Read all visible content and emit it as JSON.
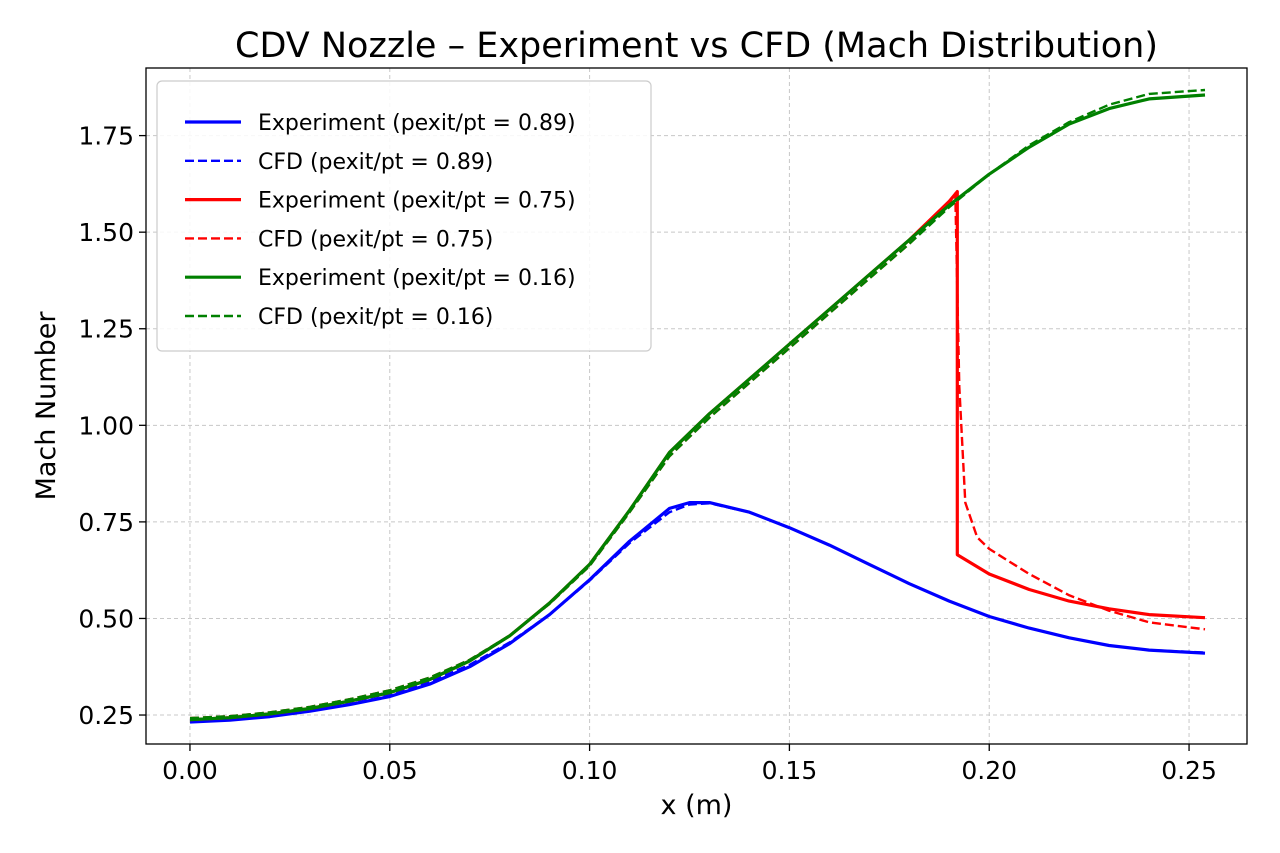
{
  "chart_data": {
    "type": "line",
    "title": "CDV Nozzle – Experiment vs CFD (Mach Distribution)",
    "xlabel": "x (m)",
    "ylabel": "Mach Number",
    "xlim": [
      -0.011,
      0.2645
    ],
    "ylim": [
      0.175,
      1.925
    ],
    "xticks": [
      0.0,
      0.05,
      0.1,
      0.15,
      0.2,
      0.25
    ],
    "xtick_labels": [
      "0.00",
      "0.05",
      "0.10",
      "0.15",
      "0.20",
      "0.25"
    ],
    "yticks": [
      0.25,
      0.5,
      0.75,
      1.0,
      1.25,
      1.5,
      1.75
    ],
    "ytick_labels": [
      "0.25",
      "0.50",
      "0.75",
      "1.00",
      "1.25",
      "1.50",
      "1.75"
    ],
    "grid": true,
    "legend_position": "top-left",
    "series": [
      {
        "name": "Experiment (pexit/pt = 0.89)",
        "color": "#0000ff",
        "style": "solid",
        "x": [
          0.0,
          0.01,
          0.02,
          0.03,
          0.04,
          0.05,
          0.06,
          0.07,
          0.08,
          0.09,
          0.1,
          0.11,
          0.12,
          0.125,
          0.13,
          0.14,
          0.15,
          0.16,
          0.17,
          0.18,
          0.19,
          0.2,
          0.21,
          0.22,
          0.23,
          0.24,
          0.254
        ],
        "y": [
          0.232,
          0.237,
          0.246,
          0.26,
          0.277,
          0.298,
          0.33,
          0.375,
          0.435,
          0.51,
          0.6,
          0.7,
          0.785,
          0.8,
          0.8,
          0.775,
          0.735,
          0.69,
          0.64,
          0.59,
          0.545,
          0.505,
          0.475,
          0.45,
          0.43,
          0.418,
          0.41
        ]
      },
      {
        "name": "CFD (pexit/pt = 0.89)",
        "color": "#0000ff",
        "style": "dashed",
        "x": [
          0.0,
          0.01,
          0.02,
          0.03,
          0.04,
          0.05,
          0.06,
          0.07,
          0.08,
          0.09,
          0.1,
          0.11,
          0.12,
          0.125,
          0.13,
          0.14,
          0.15,
          0.16,
          0.17,
          0.18,
          0.19,
          0.2,
          0.21,
          0.22,
          0.23,
          0.24,
          0.254
        ],
        "y": [
          0.238,
          0.243,
          0.252,
          0.266,
          0.284,
          0.305,
          0.336,
          0.38,
          0.438,
          0.51,
          0.598,
          0.695,
          0.775,
          0.795,
          0.798,
          0.775,
          0.735,
          0.69,
          0.64,
          0.59,
          0.545,
          0.505,
          0.475,
          0.45,
          0.43,
          0.418,
          0.412
        ]
      },
      {
        "name": "Experiment (pexit/pt = 0.75)",
        "color": "#ff0000",
        "style": "solid",
        "x": [
          0.0,
          0.01,
          0.02,
          0.03,
          0.04,
          0.05,
          0.06,
          0.07,
          0.08,
          0.09,
          0.1,
          0.11,
          0.12,
          0.127,
          0.13,
          0.14,
          0.15,
          0.16,
          0.17,
          0.18,
          0.19,
          0.192,
          0.192,
          0.2,
          0.21,
          0.22,
          0.23,
          0.24,
          0.254
        ],
        "y": [
          0.238,
          0.243,
          0.253,
          0.267,
          0.286,
          0.308,
          0.342,
          0.39,
          0.455,
          0.54,
          0.64,
          0.78,
          0.93,
          1.0,
          1.03,
          1.12,
          1.21,
          1.3,
          1.39,
          1.48,
          1.58,
          1.605,
          0.665,
          0.615,
          0.575,
          0.545,
          0.525,
          0.51,
          0.502
        ]
      },
      {
        "name": "CFD (pexit/pt = 0.75)",
        "color": "#ff0000",
        "style": "dashed",
        "x": [
          0.0,
          0.01,
          0.02,
          0.03,
          0.04,
          0.05,
          0.06,
          0.07,
          0.08,
          0.09,
          0.1,
          0.11,
          0.12,
          0.127,
          0.13,
          0.14,
          0.15,
          0.16,
          0.17,
          0.18,
          0.19,
          0.1915,
          0.1925,
          0.194,
          0.197,
          0.2,
          0.21,
          0.22,
          0.23,
          0.24,
          0.254
        ],
        "y": [
          0.242,
          0.247,
          0.257,
          0.271,
          0.291,
          0.314,
          0.347,
          0.393,
          0.456,
          0.538,
          0.636,
          0.775,
          0.92,
          0.99,
          1.02,
          1.11,
          1.2,
          1.29,
          1.38,
          1.47,
          1.57,
          1.6,
          1.1,
          0.8,
          0.71,
          0.68,
          0.615,
          0.56,
          0.52,
          0.49,
          0.472
        ]
      },
      {
        "name": "Experiment (pexit/pt = 0.16)",
        "color": "#008000",
        "style": "solid",
        "x": [
          0.0,
          0.01,
          0.02,
          0.03,
          0.04,
          0.05,
          0.06,
          0.07,
          0.08,
          0.09,
          0.1,
          0.11,
          0.12,
          0.127,
          0.13,
          0.14,
          0.15,
          0.16,
          0.17,
          0.18,
          0.19,
          0.2,
          0.21,
          0.22,
          0.23,
          0.24,
          0.254
        ],
        "y": [
          0.238,
          0.243,
          0.253,
          0.267,
          0.286,
          0.308,
          0.342,
          0.39,
          0.455,
          0.54,
          0.64,
          0.78,
          0.93,
          1.0,
          1.03,
          1.12,
          1.21,
          1.3,
          1.39,
          1.48,
          1.57,
          1.65,
          1.72,
          1.78,
          1.82,
          1.845,
          1.855
        ]
      },
      {
        "name": "CFD (pexit/pt = 0.16)",
        "color": "#008000",
        "style": "dashed",
        "x": [
          0.0,
          0.01,
          0.02,
          0.03,
          0.04,
          0.05,
          0.06,
          0.07,
          0.08,
          0.09,
          0.1,
          0.11,
          0.12,
          0.127,
          0.13,
          0.14,
          0.15,
          0.16,
          0.17,
          0.18,
          0.19,
          0.2,
          0.21,
          0.22,
          0.23,
          0.24,
          0.254
        ],
        "y": [
          0.242,
          0.247,
          0.257,
          0.271,
          0.291,
          0.314,
          0.347,
          0.393,
          0.456,
          0.538,
          0.636,
          0.775,
          0.92,
          0.99,
          1.02,
          1.11,
          1.2,
          1.29,
          1.38,
          1.47,
          1.565,
          1.65,
          1.725,
          1.785,
          1.83,
          1.858,
          1.868
        ]
      }
    ]
  }
}
